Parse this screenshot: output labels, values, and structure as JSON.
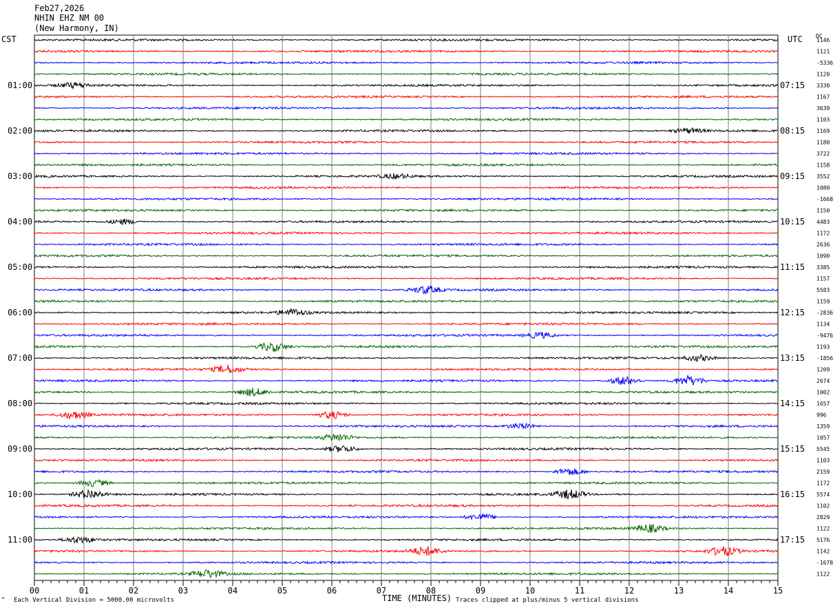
{
  "header": {
    "date": "Feb27,2026",
    "station": "NHIN EHZ NM 00",
    "location": "(New Harmony, IN)"
  },
  "corners": {
    "left_tz": "CST",
    "right_tz": "UTC",
    "dc_label": "DC"
  },
  "footer": {
    "scale_note": "Each Vertical Division = 5000.00 microvolts",
    "clip_note": "Traces clipped at plus/minus 5 vertical divisions",
    "xlabel": "TIME (MINUTES)",
    "logo_glyph": "^"
  },
  "colors": {
    "trace_cycle": [
      "#000000",
      "#ff0000",
      "#0000ff",
      "#006400"
    ],
    "grid": "#7f7f7f",
    "background": "#ffffff"
  },
  "chart_data": {
    "type": "line",
    "title": "",
    "xlabel": "TIME (MINUTES)",
    "x_ticks": [
      "00",
      "01",
      "02",
      "03",
      "04",
      "05",
      "06",
      "07",
      "08",
      "09",
      "10",
      "11",
      "12",
      "13",
      "14",
      "15"
    ],
    "xlim": [
      0,
      15
    ],
    "rows": 48,
    "rows_per_hour": 4,
    "left_hour_labels": [
      "01:00",
      "02:00",
      "03:00",
      "04:00",
      "05:00",
      "06:00",
      "07:00",
      "08:00",
      "09:00",
      "10:00",
      "11:00"
    ],
    "right_hour_labels": [
      "07:15",
      "08:15",
      "09:15",
      "10:15",
      "11:15",
      "12:15",
      "13:15",
      "14:15",
      "15:15",
      "16:15",
      "17:15"
    ],
    "dc_values": [
      "1146",
      "1121",
      "-5336",
      "1120",
      "3330",
      "1167",
      "3639",
      "1103",
      "1169",
      "1180",
      "3722",
      "1158",
      "3552",
      "1080",
      "-1668",
      "1150",
      "4483",
      "1172",
      "2636",
      "1090",
      "3385",
      "1157",
      "5583",
      "1159",
      "-2836",
      "1134",
      "-9476",
      "1193",
      "-1856",
      "1209",
      "2674",
      "1002",
      "1657",
      "996",
      "1359",
      "1057",
      "5545",
      "1103",
      "2159",
      "1172",
      "5574",
      "1102",
      "2829",
      "1122",
      "5176",
      "1142",
      "-1678",
      "1122"
    ],
    "events": [
      {
        "row": 4,
        "minute": 0.8,
        "amp": 1.6
      },
      {
        "row": 8,
        "minute": 13.2,
        "amp": 1.6
      },
      {
        "row": 12,
        "minute": 7.3,
        "amp": 1.5
      },
      {
        "row": 16,
        "minute": 1.8,
        "amp": 1.8
      },
      {
        "row": 22,
        "minute": 7.9,
        "amp": 2.6
      },
      {
        "row": 24,
        "minute": 5.2,
        "amp": 2.2
      },
      {
        "row": 26,
        "minute": 10.2,
        "amp": 2.0
      },
      {
        "row": 27,
        "minute": 4.8,
        "amp": 3.0
      },
      {
        "row": 28,
        "minute": 13.4,
        "amp": 2.0
      },
      {
        "row": 29,
        "minute": 3.9,
        "amp": 2.6
      },
      {
        "row": 30,
        "minute": 11.9,
        "amp": 3.0
      },
      {
        "row": 30,
        "minute": 13.2,
        "amp": 3.2
      },
      {
        "row": 31,
        "minute": 4.4,
        "amp": 2.6
      },
      {
        "row": 33,
        "minute": 0.8,
        "amp": 2.5
      },
      {
        "row": 33,
        "minute": 6.0,
        "amp": 2.6
      },
      {
        "row": 34,
        "minute": 9.8,
        "amp": 2.0
      },
      {
        "row": 35,
        "minute": 6.1,
        "amp": 2.4
      },
      {
        "row": 36,
        "minute": 6.2,
        "amp": 2.4
      },
      {
        "row": 38,
        "minute": 10.8,
        "amp": 2.5
      },
      {
        "row": 39,
        "minute": 1.2,
        "amp": 2.4
      },
      {
        "row": 40,
        "minute": 1.1,
        "amp": 3.2
      },
      {
        "row": 40,
        "minute": 10.8,
        "amp": 3.0
      },
      {
        "row": 42,
        "minute": 9.0,
        "amp": 2.4
      },
      {
        "row": 43,
        "minute": 12.4,
        "amp": 2.6
      },
      {
        "row": 44,
        "minute": 0.9,
        "amp": 2.2
      },
      {
        "row": 45,
        "minute": 7.9,
        "amp": 2.8
      },
      {
        "row": 45,
        "minute": 13.9,
        "amp": 3.0
      },
      {
        "row": 47,
        "minute": 3.5,
        "amp": 2.6
      }
    ]
  }
}
